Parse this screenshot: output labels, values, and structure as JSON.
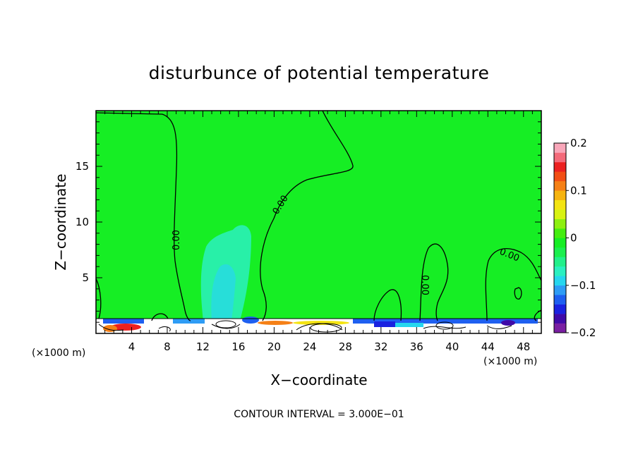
{
  "chart_data": {
    "type": "heatmap",
    "title": "disturbunce of potential temperature",
    "xlabel": "X−coordinate",
    "ylabel": "Z−coordinate",
    "x_unit_left": "(×1000 m)",
    "x_unit_right": "(×1000 m)",
    "xlim": [
      0,
      50
    ],
    "ylim": [
      0,
      20
    ],
    "x_ticks": [
      4,
      8,
      12,
      16,
      20,
      24,
      28,
      32,
      36,
      40,
      44,
      48
    ],
    "y_ticks": [
      5,
      10,
      15
    ],
    "colorbar": {
      "min": -0.2,
      "max": 0.2,
      "tick_values": [
        0.2,
        0.1,
        0,
        -0.1,
        -0.2
      ],
      "tick_labels": [
        "0.2",
        "0.1",
        "0",
        "−0.1",
        "−0.2"
      ],
      "colors": [
        "#7a1fa2",
        "#3f0aa8",
        "#1a22e0",
        "#1e5ff0",
        "#2e9cf5",
        "#26d6ee",
        "#2bf0c0",
        "#22f08a",
        "#1bef4e",
        "#16ee24",
        "#44ee10",
        "#8df010",
        "#d8f212",
        "#f4e412",
        "#f6b410",
        "#f58016",
        "#f24e14",
        "#ec2020",
        "#f46a7a",
        "#f9a7ba"
      ]
    },
    "background_color": "#16ee24",
    "contour_labels": [
      "0.00",
      "0.00",
      "0.00",
      "0.00"
    ],
    "contour_interval_text": "CONTOUR INTERVAL = 3.000E−01"
  }
}
